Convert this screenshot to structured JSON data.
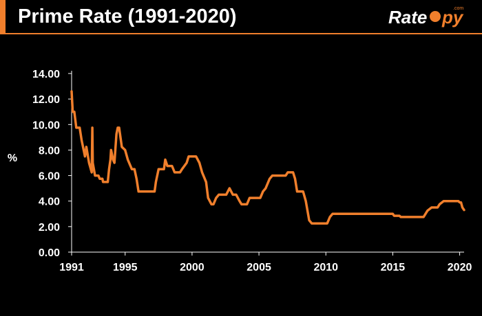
{
  "header": {
    "title": "Prime Rate (1991-2020)",
    "brand_text": "RateSpy",
    "brand_suffix": ".com"
  },
  "colors": {
    "accent": "#f07f2c",
    "background": "#000000",
    "text": "#ffffff",
    "axis": "#ffffff"
  },
  "chart_data": {
    "type": "line",
    "title": "Prime Rate (1991-2020)",
    "xlabel": "",
    "ylabel": "%",
    "xlim": [
      1991,
      2020.33
    ],
    "ylim": [
      0,
      14
    ],
    "grid": false,
    "y_ticks": [
      "0.00",
      "2.00",
      "4.00",
      "6.00",
      "8.00",
      "10.00",
      "12.00",
      "14.00"
    ],
    "x_ticks": [
      "1991",
      "1995",
      "2000",
      "2005",
      "2010",
      "2015",
      "2020"
    ],
    "series": [
      {
        "color": "#f07f2c",
        "points": [
          [
            1991.0,
            12.6
          ],
          [
            1991.08,
            11.0
          ],
          [
            1991.2,
            11.0
          ],
          [
            1991.35,
            9.75
          ],
          [
            1991.6,
            9.75
          ],
          [
            1991.75,
            8.75
          ],
          [
            1991.9,
            8.0
          ],
          [
            1992.0,
            7.5
          ],
          [
            1992.1,
            8.25
          ],
          [
            1992.3,
            7.0
          ],
          [
            1992.5,
            6.25
          ],
          [
            1992.55,
            9.75
          ],
          [
            1992.58,
            7.0
          ],
          [
            1992.75,
            6.0
          ],
          [
            1993.0,
            6.0
          ],
          [
            1993.1,
            5.75
          ],
          [
            1993.3,
            5.75
          ],
          [
            1993.35,
            5.5
          ],
          [
            1993.7,
            5.5
          ],
          [
            1993.8,
            6.5
          ],
          [
            1993.9,
            7.25
          ],
          [
            1993.95,
            8.0
          ],
          [
            1994.1,
            7.25
          ],
          [
            1994.2,
            7.0
          ],
          [
            1994.35,
            9.25
          ],
          [
            1994.45,
            9.75
          ],
          [
            1994.55,
            9.75
          ],
          [
            1994.75,
            8.25
          ],
          [
            1995.0,
            8.0
          ],
          [
            1995.2,
            7.25
          ],
          [
            1995.5,
            6.5
          ],
          [
            1995.7,
            6.5
          ],
          [
            1995.85,
            5.75
          ],
          [
            1996.0,
            4.75
          ],
          [
            1997.2,
            4.75
          ],
          [
            1997.3,
            5.5
          ],
          [
            1997.5,
            6.5
          ],
          [
            1997.9,
            6.5
          ],
          [
            1998.0,
            7.25
          ],
          [
            1998.15,
            6.75
          ],
          [
            1998.5,
            6.75
          ],
          [
            1998.7,
            6.25
          ],
          [
            1999.1,
            6.25
          ],
          [
            1999.25,
            6.5
          ],
          [
            1999.6,
            7.0
          ],
          [
            1999.75,
            7.5
          ],
          [
            2000.3,
            7.5
          ],
          [
            2000.55,
            7.0
          ],
          [
            2000.75,
            6.25
          ],
          [
            2001.05,
            5.5
          ],
          [
            2001.2,
            4.25
          ],
          [
            2001.45,
            3.75
          ],
          [
            2001.6,
            3.75
          ],
          [
            2001.8,
            4.25
          ],
          [
            2002.0,
            4.5
          ],
          [
            2002.55,
            4.5
          ],
          [
            2002.8,
            5.0
          ],
          [
            2003.05,
            4.5
          ],
          [
            2003.3,
            4.5
          ],
          [
            2003.55,
            4.0
          ],
          [
            2003.7,
            3.75
          ],
          [
            2004.1,
            3.75
          ],
          [
            2004.3,
            4.25
          ],
          [
            2005.1,
            4.25
          ],
          [
            2005.3,
            4.75
          ],
          [
            2005.5,
            5.0
          ],
          [
            2005.8,
            5.75
          ],
          [
            2006.0,
            6.0
          ],
          [
            2007.0,
            6.0
          ],
          [
            2007.15,
            6.25
          ],
          [
            2007.55,
            6.25
          ],
          [
            2007.7,
            5.75
          ],
          [
            2007.85,
            4.75
          ],
          [
            2008.3,
            4.75
          ],
          [
            2008.5,
            4.0
          ],
          [
            2008.75,
            2.5
          ],
          [
            2008.95,
            2.25
          ],
          [
            2010.1,
            2.25
          ],
          [
            2010.3,
            2.75
          ],
          [
            2010.5,
            3.0
          ],
          [
            2015.0,
            3.0
          ],
          [
            2015.1,
            2.85
          ],
          [
            2015.5,
            2.85
          ],
          [
            2015.6,
            2.75
          ],
          [
            2017.3,
            2.75
          ],
          [
            2017.6,
            3.25
          ],
          [
            2017.9,
            3.5
          ],
          [
            2018.35,
            3.5
          ],
          [
            2018.5,
            3.75
          ],
          [
            2018.8,
            4.0
          ],
          [
            2019.9,
            4.0
          ],
          [
            2020.0,
            3.9
          ],
          [
            2020.1,
            3.9
          ],
          [
            2020.2,
            3.5
          ],
          [
            2020.33,
            3.3
          ]
        ]
      }
    ]
  }
}
